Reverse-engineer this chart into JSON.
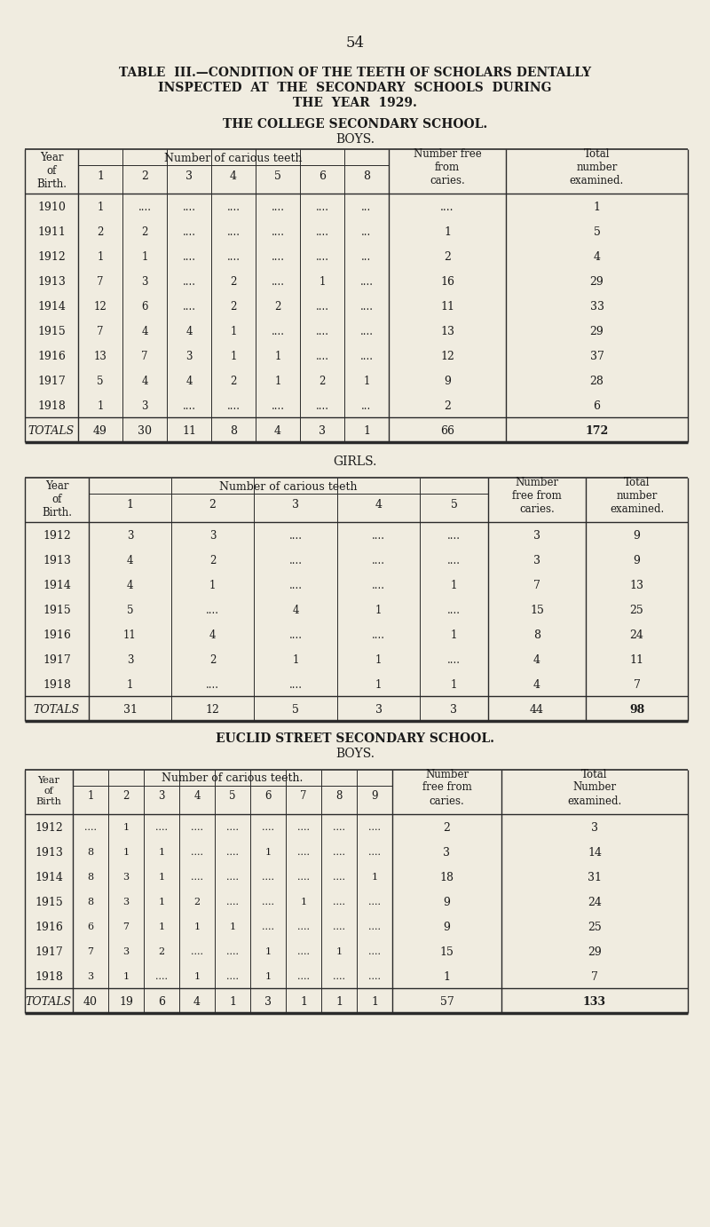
{
  "page_number": "54",
  "bg_color": "#f0ece0",
  "title_line1": "TABLE  III.—CONDITION OF THE TEETH OF SCHOLARS DENTALLY",
  "title_line2": "INSPECTED  AT  THE  SECONDARY  SCHOOLS  DURING",
  "title_line3": "THE  YEAR  1929.",
  "section1_title": "THE COLLEGE SECONDARY SCHOOL.",
  "section1_subtitle": "BOYS.",
  "table1_header_sub": [
    "1",
    "2",
    "3",
    "4",
    "5",
    "6",
    "8"
  ],
  "table1_data": [
    [
      "1910",
      "1",
      "....",
      "....",
      "....",
      "....",
      "....",
      "....",
      "....",
      "1"
    ],
    [
      "1911",
      "2",
      "2",
      "....",
      "....",
      "....",
      "....",
      "....",
      "1",
      "5"
    ],
    [
      "1912",
      "1",
      "1",
      "....",
      "....",
      "....",
      "....",
      "....",
      "2",
      "4"
    ],
    [
      "1913",
      "7",
      "3",
      "....",
      "2",
      "....",
      "1",
      "....",
      "....",
      "16",
      "29"
    ],
    [
      "1914",
      "12",
      "6",
      "....",
      "2",
      "2",
      "....",
      "....",
      "....",
      "11",
      "33"
    ],
    [
      "1915",
      "7",
      "4",
      "4",
      "1",
      "....",
      "....",
      "....",
      "....",
      "13",
      "29"
    ],
    [
      "1916",
      "13",
      "7",
      "3",
      "1",
      "1",
      "....",
      "....",
      "....",
      "12",
      "37"
    ],
    [
      "1917",
      "5",
      "4",
      "4",
      "2",
      "1",
      "2",
      "1",
      "....",
      "9",
      "28"
    ],
    [
      "1918",
      "1",
      "3",
      "....",
      "....",
      "....",
      "....",
      "....",
      "....",
      "2",
      "6"
    ]
  ],
  "table1_totals": [
    "TOTALS",
    "49",
    "30",
    "11",
    "8",
    "4",
    "3",
    "1",
    "....",
    "66",
    "172"
  ],
  "section2_subtitle": "GIRLS.",
  "table2_header_sub": [
    "1",
    "2",
    "3",
    "4",
    "5"
  ],
  "table2_data": [
    [
      "1912",
      "3",
      "3",
      "....",
      "....",
      "....",
      "3",
      "9"
    ],
    [
      "1913",
      "4",
      "2",
      "....",
      "....",
      "....",
      "3",
      "9"
    ],
    [
      "1914",
      "4",
      "1",
      "....",
      "....",
      "1",
      "7",
      "13"
    ],
    [
      "1915",
      "5",
      "....",
      "4",
      "1",
      "....",
      "15",
      "25"
    ],
    [
      "1916",
      "11",
      "4",
      "....",
      "....",
      "1",
      "8",
      "24"
    ],
    [
      "1917",
      "3",
      "2",
      "1",
      "1",
      "....",
      "4",
      "11"
    ],
    [
      "1918",
      "1",
      "....",
      "....",
      "1",
      "1",
      "4",
      "7"
    ]
  ],
  "table2_totals": [
    "TOTALS",
    "31",
    "12",
    "5",
    "3",
    "3",
    "44",
    "98"
  ],
  "section3_title": "EUCLID STREET SECONDARY SCHOOL.",
  "section3_subtitle": "BOYS.",
  "table3_header_sub": [
    "1",
    "2",
    "3",
    "4",
    "5",
    "6",
    "7",
    "8",
    "9"
  ],
  "table3_data": [
    [
      "1912",
      "....",
      "1",
      "....",
      "....",
      "....",
      "....",
      "....",
      "....",
      "....",
      "2",
      "3"
    ],
    [
      "1913",
      "8",
      "1",
      "1",
      "....",
      "....",
      "1",
      "....",
      "....",
      "....",
      "3",
      "14"
    ],
    [
      "1914",
      "8",
      "3",
      "1",
      "....",
      "....",
      "....",
      "....",
      "....",
      "1",
      "18",
      "31"
    ],
    [
      "1915",
      "8",
      "3",
      "1",
      "2",
      "....",
      "....",
      "1",
      "....",
      "....",
      "9",
      "24"
    ],
    [
      "1916",
      "6",
      "7",
      "1",
      "1",
      "1",
      "....",
      "....",
      "....",
      "....",
      "9",
      "25"
    ],
    [
      "1917",
      "7",
      "3",
      "2",
      "....",
      "....",
      "1",
      "....",
      "1",
      "....",
      "15",
      "29"
    ],
    [
      "1918",
      "3",
      "1",
      "....",
      "1",
      "....",
      "1",
      "....",
      "....",
      "....",
      "1",
      "7"
    ]
  ],
  "table3_totals": [
    "TOTALS",
    "40",
    "19",
    "6",
    "4",
    "1",
    "3",
    "1",
    "1",
    "1",
    "57",
    "133"
  ]
}
